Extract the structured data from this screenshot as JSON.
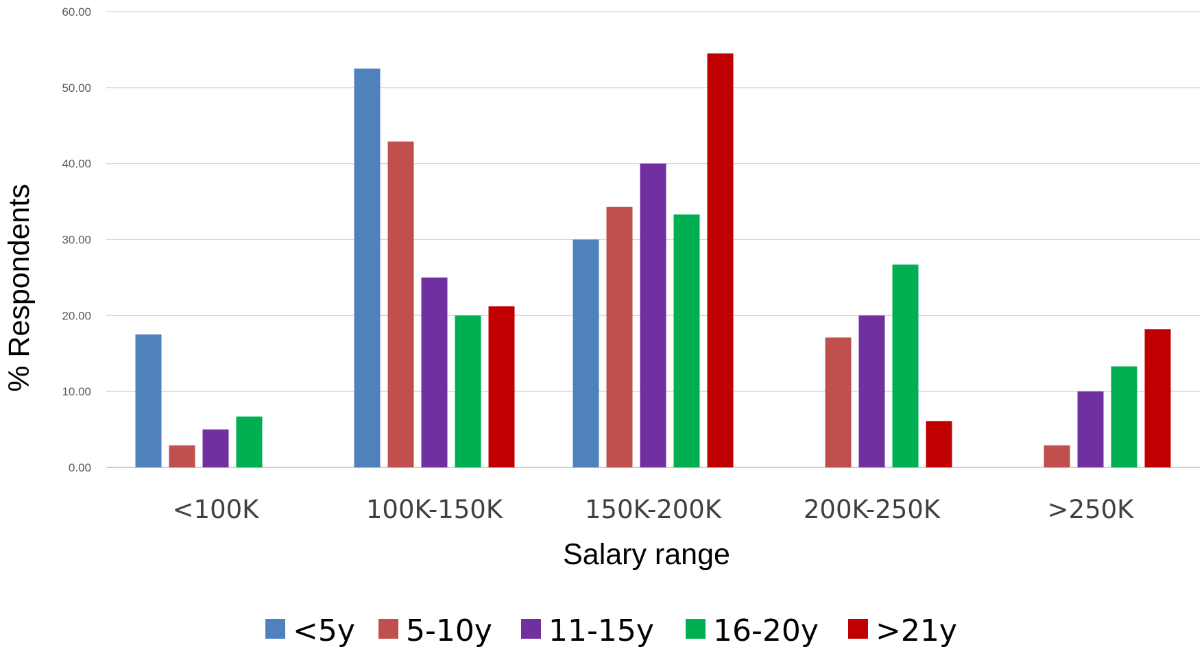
{
  "chart_data": {
    "type": "bar",
    "title": "",
    "xlabel": "Salary range",
    "ylabel": "% Respondents",
    "ylim": [
      0,
      60
    ],
    "yticks": [
      "0.00",
      "10.00",
      "20.00",
      "30.00",
      "40.00",
      "50.00",
      "60.00"
    ],
    "grid": true,
    "legend_position": "bottom",
    "categories": [
      "<100K",
      "100K-150K",
      "150K-200K",
      "200K-250K",
      ">250K"
    ],
    "series": [
      {
        "name": "<5y",
        "color": "#4f81bd",
        "values": [
          17.5,
          52.5,
          30.0,
          0,
          0
        ]
      },
      {
        "name": "5-10y",
        "color": "#c0504d",
        "values": [
          2.9,
          42.9,
          34.3,
          17.1,
          2.9
        ]
      },
      {
        "name": "11-15y",
        "color": "#7030a0",
        "values": [
          5.0,
          25.0,
          40.0,
          20.0,
          10.0
        ]
      },
      {
        "name": "16-20y",
        "color": "#00b050",
        "values": [
          6.7,
          20.0,
          33.3,
          26.7,
          13.3
        ]
      },
      {
        "name": ">21y",
        "color": "#c00000",
        "values": [
          0,
          21.2,
          54.5,
          6.1,
          18.2
        ]
      }
    ]
  }
}
